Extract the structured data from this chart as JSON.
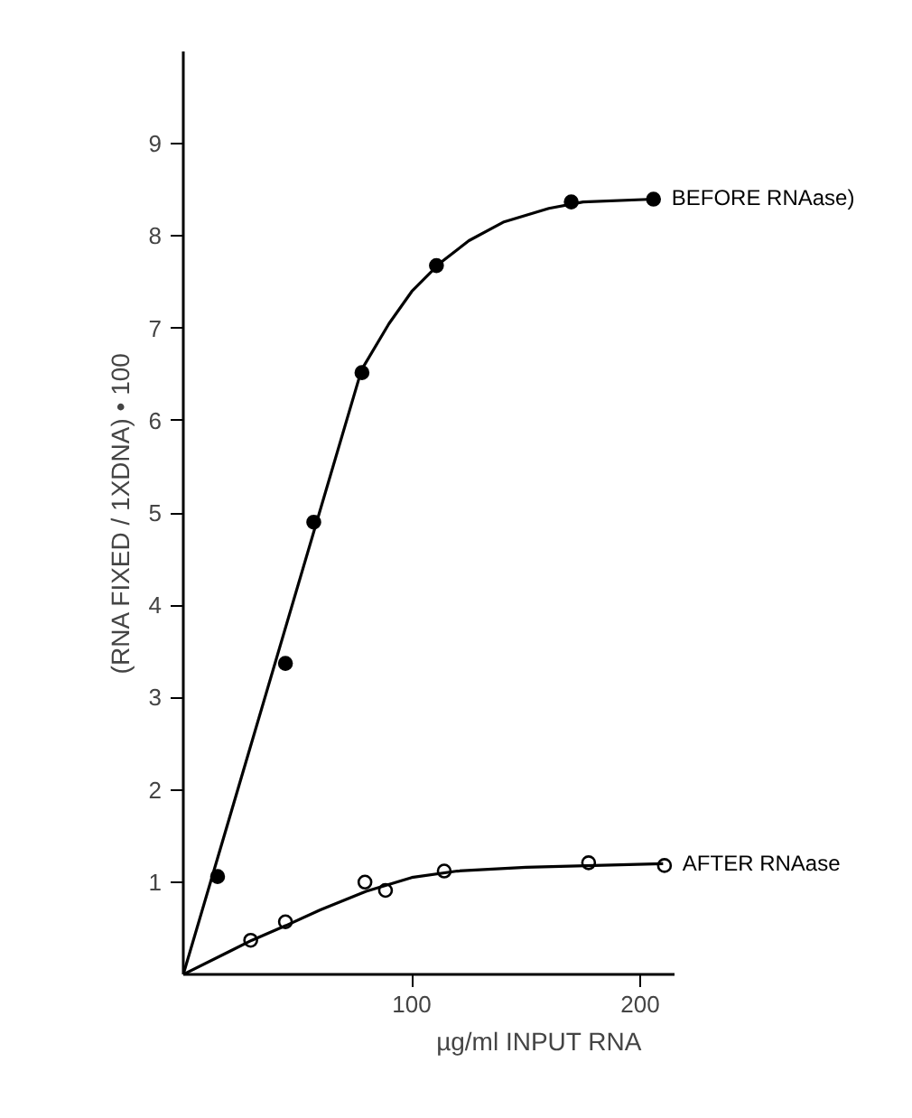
{
  "chart_data": {
    "type": "scatter",
    "xlabel": "µg/ml INPUT RNA",
    "ylabel": "(RNA FIXED / 1XDNA) • 100",
    "xlim": [
      0,
      215
    ],
    "ylim": [
      0,
      10
    ],
    "xticks": [
      100,
      200
    ],
    "yticks": [
      1,
      2,
      3,
      4,
      5,
      6,
      7,
      8,
      9
    ],
    "grid": false,
    "series": [
      {
        "name": "BEFORE RNAase)",
        "color": "#000000",
        "marker": "circle",
        "x": [
          15,
          44.7,
          57.1,
          78.2,
          110.8,
          169.8,
          205.8
        ],
        "values": [
          1.06,
          3.37,
          4.9,
          6.52,
          7.68,
          8.37,
          8.4
        ]
      },
      {
        "name": "AFTER RNAase",
        "color": "#000000",
        "marker": "circle_open",
        "x": [
          29.5,
          44.7,
          79.5,
          88.5,
          114.2,
          177.4,
          210.6
        ],
        "values": [
          0.37,
          0.57,
          1.0,
          0.91,
          1.12,
          1.21,
          1.18
        ]
      },
      {
        "type": "line",
        "color": "#000000",
        "marker": "none",
        "line_style": "solid",
        "x": [
          0,
          78,
          90,
          100,
          112,
          125,
          140,
          160,
          175,
          206
        ],
        "values": [
          0,
          6.55,
          7.05,
          7.4,
          7.7,
          7.95,
          8.15,
          8.3,
          8.37,
          8.4
        ]
      },
      {
        "type": "line",
        "color": "#000000",
        "marker": "none",
        "line_style": "solid",
        "x": [
          0,
          30,
          45,
          60,
          80,
          100,
          120,
          150,
          180,
          210
        ],
        "values": [
          0,
          0.37,
          0.53,
          0.7,
          0.9,
          1.05,
          1.12,
          1.16,
          1.18,
          1.2
        ]
      }
    ]
  }
}
